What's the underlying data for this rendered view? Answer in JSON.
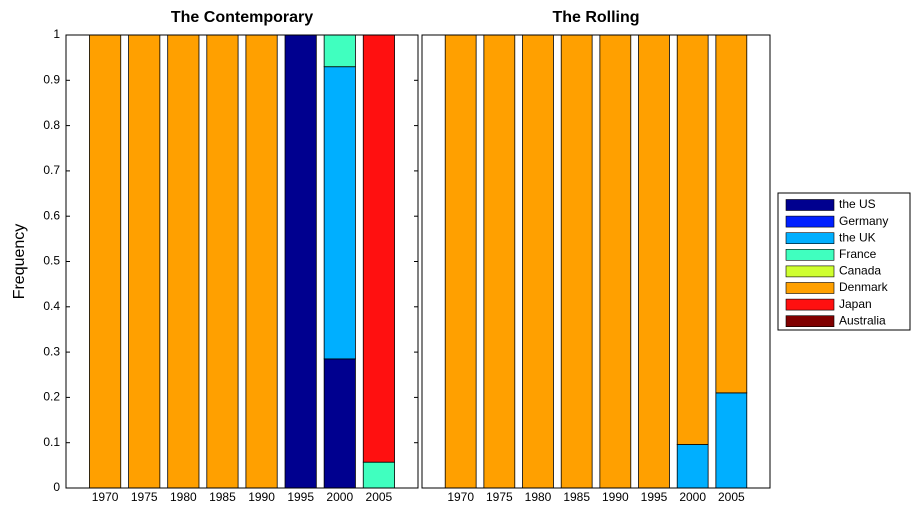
{
  "chart_data": [
    {
      "type": "stacked_bar",
      "title": "The Contemporary",
      "y_label": "Frequency",
      "categories": [
        "1970",
        "1975",
        "1980",
        "1985",
        "1990",
        "1995",
        "2000",
        "2005"
      ],
      "ylim": [
        0,
        1
      ],
      "yticks": [
        0,
        0.1,
        0.2,
        0.3,
        0.4,
        0.5,
        0.6,
        0.7,
        0.8,
        0.9,
        1
      ],
      "series": [
        {
          "name": "the US",
          "color": "#00008f",
          "values": [
            0,
            0,
            0,
            0,
            0,
            1,
            0.285,
            0
          ]
        },
        {
          "name": "Germany",
          "color": "#0020ff",
          "values": [
            0,
            0,
            0,
            0,
            0,
            0,
            0,
            0
          ]
        },
        {
          "name": "the UK",
          "color": "#00afff",
          "values": [
            0,
            0,
            0,
            0,
            0,
            0,
            0.645,
            0
          ]
        },
        {
          "name": "France",
          "color": "#40ffbf",
          "values": [
            0,
            0,
            0,
            0,
            0,
            0,
            0.07,
            0.057
          ]
        },
        {
          "name": "Canada",
          "color": "#cfff30",
          "values": [
            0,
            0,
            0,
            0,
            0,
            0,
            0,
            0
          ]
        },
        {
          "name": "Denmark",
          "color": "#ffa000",
          "values": [
            1,
            1,
            1,
            1,
            1,
            0,
            0,
            0
          ]
        },
        {
          "name": "Japan",
          "color": "#ff1010",
          "values": [
            0,
            0,
            0,
            0,
            0,
            0,
            0,
            0.943
          ]
        },
        {
          "name": "Australia",
          "color": "#800000",
          "values": [
            0,
            0,
            0,
            0,
            0,
            0,
            0,
            0
          ]
        }
      ]
    },
    {
      "type": "stacked_bar",
      "title": "The Rolling",
      "categories": [
        "1970",
        "1975",
        "1980",
        "1985",
        "1990",
        "1995",
        "2000",
        "2005"
      ],
      "ylim": [
        0,
        1
      ],
      "series": [
        {
          "name": "the US",
          "color": "#00008f",
          "values": [
            0,
            0,
            0,
            0,
            0,
            0,
            0,
            0
          ]
        },
        {
          "name": "Germany",
          "color": "#0020ff",
          "values": [
            0,
            0,
            0,
            0,
            0,
            0,
            0,
            0
          ]
        },
        {
          "name": "the UK",
          "color": "#00afff",
          "values": [
            0,
            0,
            0,
            0,
            0,
            0,
            0.096,
            0.21
          ]
        },
        {
          "name": "France",
          "color": "#40ffbf",
          "values": [
            0,
            0,
            0,
            0,
            0,
            0,
            0,
            0
          ]
        },
        {
          "name": "Canada",
          "color": "#cfff30",
          "values": [
            0,
            0,
            0,
            0,
            0,
            0,
            0,
            0
          ]
        },
        {
          "name": "Denmark",
          "color": "#ffa000",
          "values": [
            1,
            1,
            1,
            1,
            1,
            1,
            0.904,
            0.79
          ]
        },
        {
          "name": "Japan",
          "color": "#ff1010",
          "values": [
            0,
            0,
            0,
            0,
            0,
            0,
            0,
            0
          ]
        },
        {
          "name": "Australia",
          "color": "#800000",
          "values": [
            0,
            0,
            0,
            0,
            0,
            0,
            0,
            0
          ]
        }
      ]
    }
  ]
}
